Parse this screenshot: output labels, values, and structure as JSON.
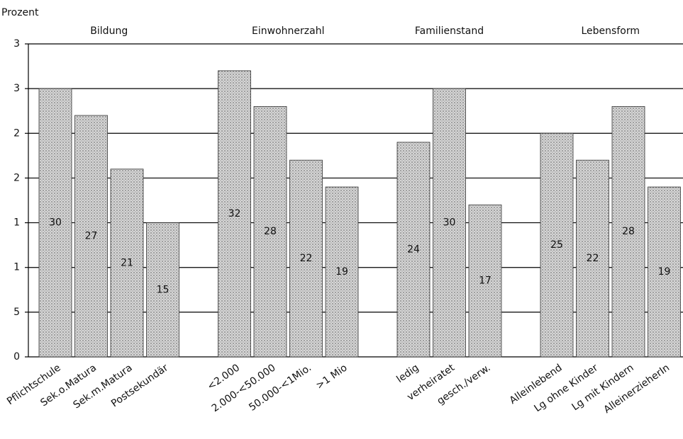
{
  "chart_data": {
    "type": "bar",
    "y_label": "Prozent",
    "color": "#c4c4c4",
    "ylim": [
      0,
      35
    ],
    "yticks": [
      0,
      5,
      {
        "value": 10,
        "label": "1"
      },
      {
        "value": 15,
        "label": "1"
      },
      {
        "value": 20,
        "label": "2"
      },
      {
        "value": 25,
        "label": "2"
      },
      {
        "value": 30,
        "label": "3"
      },
      {
        "value": 35,
        "label": "3"
      }
    ],
    "grid": true,
    "groups": [
      {
        "name": "Bildung",
        "categories": [
          "Pflichtschule",
          "Sek.o.Matura",
          "Sek.m.Matura",
          "Postsekundär"
        ],
        "values": [
          30,
          27,
          21,
          15
        ]
      },
      {
        "name": "Einwohnerzahl",
        "categories": [
          "<2.000",
          "2.000-<50.000",
          "50.000-<1Mio.",
          ">1 Mio"
        ],
        "values": [
          32,
          28,
          22,
          19
        ]
      },
      {
        "name": "Familienstand",
        "categories": [
          "ledig",
          "verheiratet",
          "gesch./verw."
        ],
        "values": [
          24,
          30,
          17
        ]
      },
      {
        "name": "Lebensform",
        "categories": [
          "Alleinlebend",
          "Lg ohne Kinder",
          "Lg mit Kindern",
          "AlleinerzieherIn"
        ],
        "values": [
          25,
          22,
          28,
          19
        ]
      }
    ]
  }
}
